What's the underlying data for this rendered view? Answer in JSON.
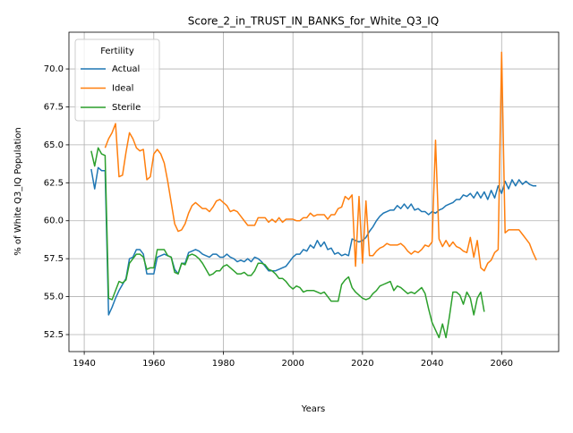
{
  "chart_data": {
    "type": "line",
    "title": "Score_2_in_TRUST_IN_BANKS_for_White_Q3_IQ",
    "xlabel": "Years",
    "ylabel": "% of White Q3_IQ Population",
    "legend_title": "Fertility",
    "legend_loc": "upper left",
    "grid": true,
    "xlim": [
      1935.6,
      2076.4
    ],
    "ylim": [
      51.38,
      72.42
    ],
    "xticks": [
      1940,
      1960,
      1980,
      2000,
      2020,
      2040,
      2060
    ],
    "yticks": [
      52.5,
      {
        "value": 55,
        "label": "55.0"
      },
      57.5,
      {
        "value": 60,
        "label": "60.0"
      },
      62.5,
      {
        "value": 65,
        "label": "65.0"
      },
      67.5,
      {
        "value": 70,
        "label": "70.0"
      }
    ],
    "x": [
      1942,
      1943,
      1944,
      1945,
      1946,
      1947,
      1948,
      1949,
      1950,
      1951,
      1952,
      1953,
      1954,
      1955,
      1956,
      1957,
      1958,
      1959,
      1960,
      1961,
      1962,
      1963,
      1964,
      1965,
      1966,
      1967,
      1968,
      1969,
      1970,
      1971,
      1972,
      1973,
      1974,
      1975,
      1976,
      1977,
      1978,
      1979,
      1980,
      1981,
      1982,
      1983,
      1984,
      1985,
      1986,
      1987,
      1988,
      1989,
      1990,
      1991,
      1992,
      1993,
      1994,
      1995,
      1996,
      1997,
      1998,
      1999,
      2000,
      2001,
      2002,
      2003,
      2004,
      2005,
      2006,
      2007,
      2008,
      2009,
      2010,
      2011,
      2012,
      2013,
      2014,
      2015,
      2016,
      2017,
      2018,
      2019,
      2020,
      2021,
      2022,
      2023,
      2024,
      2025,
      2026,
      2027,
      2028,
      2029,
      2030,
      2031,
      2032,
      2033,
      2034,
      2035,
      2036,
      2037,
      2038,
      2039,
      2040,
      2041,
      2042,
      2043,
      2044,
      2045,
      2046,
      2047,
      2048,
      2049,
      2050,
      2051,
      2052,
      2053,
      2054,
      2055,
      2056,
      2057,
      2058,
      2059,
      2060,
      2061,
      2062,
      2063,
      2064,
      2065,
      2066,
      2067,
      2068,
      2069,
      2070
    ],
    "series": [
      {
        "name": "Actual",
        "color": "#1f77b4",
        "values": [
          63.4,
          62.1,
          63.5,
          63.3,
          63.3,
          53.8,
          54.3,
          54.9,
          55.4,
          55.8,
          56.2,
          57.5,
          57.6,
          58.1,
          58.1,
          57.8,
          56.5,
          56.5,
          56.5,
          57.6,
          57.7,
          57.8,
          57.7,
          57.6,
          56.8,
          56.5,
          57.2,
          57.2,
          57.9,
          58.0,
          58.1,
          58.0,
          57.8,
          57.7,
          57.6,
          57.8,
          57.8,
          57.6,
          57.6,
          57.8,
          57.6,
          57.5,
          57.3,
          57.4,
          57.3,
          57.5,
          57.3,
          57.6,
          57.5,
          57.3,
          57.0,
          56.7,
          56.7,
          56.7,
          56.8,
          56.9,
          57.0,
          57.3,
          57.6,
          57.8,
          57.8,
          58.1,
          58.0,
          58.4,
          58.2,
          58.7,
          58.3,
          58.6,
          58.1,
          58.2,
          57.8,
          57.9,
          57.7,
          57.8,
          57.7,
          58.8,
          58.7,
          58.6,
          58.7,
          58.9,
          59.3,
          59.6,
          60.0,
          60.3,
          60.5,
          60.6,
          60.7,
          60.7,
          61.0,
          60.8,
          61.1,
          60.8,
          61.1,
          60.7,
          60.8,
          60.6,
          60.6,
          60.4,
          60.6,
          60.5,
          60.7,
          60.8,
          61.0,
          61.1,
          61.2,
          61.4,
          61.4,
          61.7,
          61.6,
          61.8,
          61.5,
          61.9,
          61.5,
          61.9,
          61.4,
          62.0,
          61.5,
          62.3,
          61.8,
          62.6,
          62.1,
          62.7,
          62.3,
          62.7,
          62.4,
          62.6,
          62.4,
          62.3,
          62.3
        ]
      },
      {
        "name": "Ideal",
        "color": "#ff7f0e",
        "values": [
          null,
          null,
          null,
          null,
          64.8,
          65.4,
          65.8,
          66.4,
          62.9,
          63.0,
          64.5,
          65.8,
          65.4,
          64.8,
          64.6,
          64.7,
          62.7,
          62.9,
          64.4,
          64.7,
          64.4,
          63.8,
          62.6,
          61.2,
          59.8,
          59.3,
          59.4,
          59.8,
          60.5,
          61.0,
          61.2,
          61.0,
          60.8,
          60.8,
          60.6,
          60.9,
          61.3,
          61.4,
          61.2,
          61.0,
          60.6,
          60.7,
          60.6,
          60.3,
          60.0,
          59.7,
          59.7,
          59.7,
          60.2,
          60.2,
          60.2,
          59.9,
          60.1,
          59.9,
          60.2,
          59.9,
          60.1,
          60.1,
          60.1,
          60.0,
          60.0,
          60.2,
          60.2,
          60.5,
          60.3,
          60.4,
          60.4,
          60.4,
          60.1,
          60.4,
          60.4,
          60.8,
          60.9,
          61.6,
          61.4,
          61.7,
          57.0,
          61.6,
          57.2,
          61.3,
          57.7,
          57.7,
          58.0,
          58.2,
          58.3,
          58.5,
          58.4,
          58.4,
          58.4,
          58.5,
          58.3,
          58.0,
          57.8,
          58.0,
          57.9,
          58.1,
          58.4,
          58.3,
          58.6,
          65.3,
          58.8,
          58.3,
          58.7,
          58.3,
          58.6,
          58.3,
          58.2,
          58.0,
          57.9,
          58.9,
          57.6,
          58.7,
          56.9,
          56.7,
          57.2,
          57.4,
          57.9,
          58.1,
          71.1,
          59.2,
          59.4,
          59.4,
          59.4,
          59.4,
          59.1,
          58.8,
          58.5,
          57.9,
          57.4
        ]
      },
      {
        "name": "Sterile",
        "color": "#2ca02c",
        "values": [
          64.6,
          63.6,
          64.8,
          64.4,
          64.3,
          54.9,
          54.8,
          55.4,
          56.0,
          55.9,
          56.1,
          57.2,
          57.5,
          57.8,
          57.8,
          57.6,
          56.8,
          56.9,
          56.9,
          58.1,
          58.1,
          58.1,
          57.7,
          57.6,
          56.6,
          56.5,
          57.2,
          57.1,
          57.7,
          57.8,
          57.7,
          57.5,
          57.2,
          56.8,
          56.4,
          56.5,
          56.7,
          56.7,
          57.0,
          57.1,
          56.9,
          56.7,
          56.5,
          56.5,
          56.6,
          56.4,
          56.4,
          56.7,
          57.2,
          57.2,
          57.1,
          56.8,
          56.7,
          56.5,
          56.2,
          56.2,
          56.0,
          55.7,
          55.5,
          55.7,
          55.6,
          55.3,
          55.4,
          55.4,
          55.4,
          55.3,
          55.2,
          55.3,
          55.0,
          54.7,
          54.7,
          54.7,
          55.8,
          56.1,
          56.3,
          55.6,
          55.3,
          55.1,
          54.9,
          54.8,
          54.9,
          55.2,
          55.4,
          55.7,
          55.8,
          55.9,
          56.0,
          55.4,
          55.7,
          55.6,
          55.4,
          55.2,
          55.3,
          55.2,
          55.4,
          55.6,
          55.2,
          54.2,
          53.3,
          52.8,
          52.3,
          53.2,
          52.3,
          53.7,
          55.3,
          55.3,
          55.1,
          54.5,
          55.3,
          54.9,
          53.8,
          54.9,
          55.3,
          54.0,
          null,
          null,
          null,
          null,
          null,
          null,
          null,
          null,
          null,
          null,
          null,
          null,
          null,
          null,
          null
        ]
      }
    ]
  }
}
